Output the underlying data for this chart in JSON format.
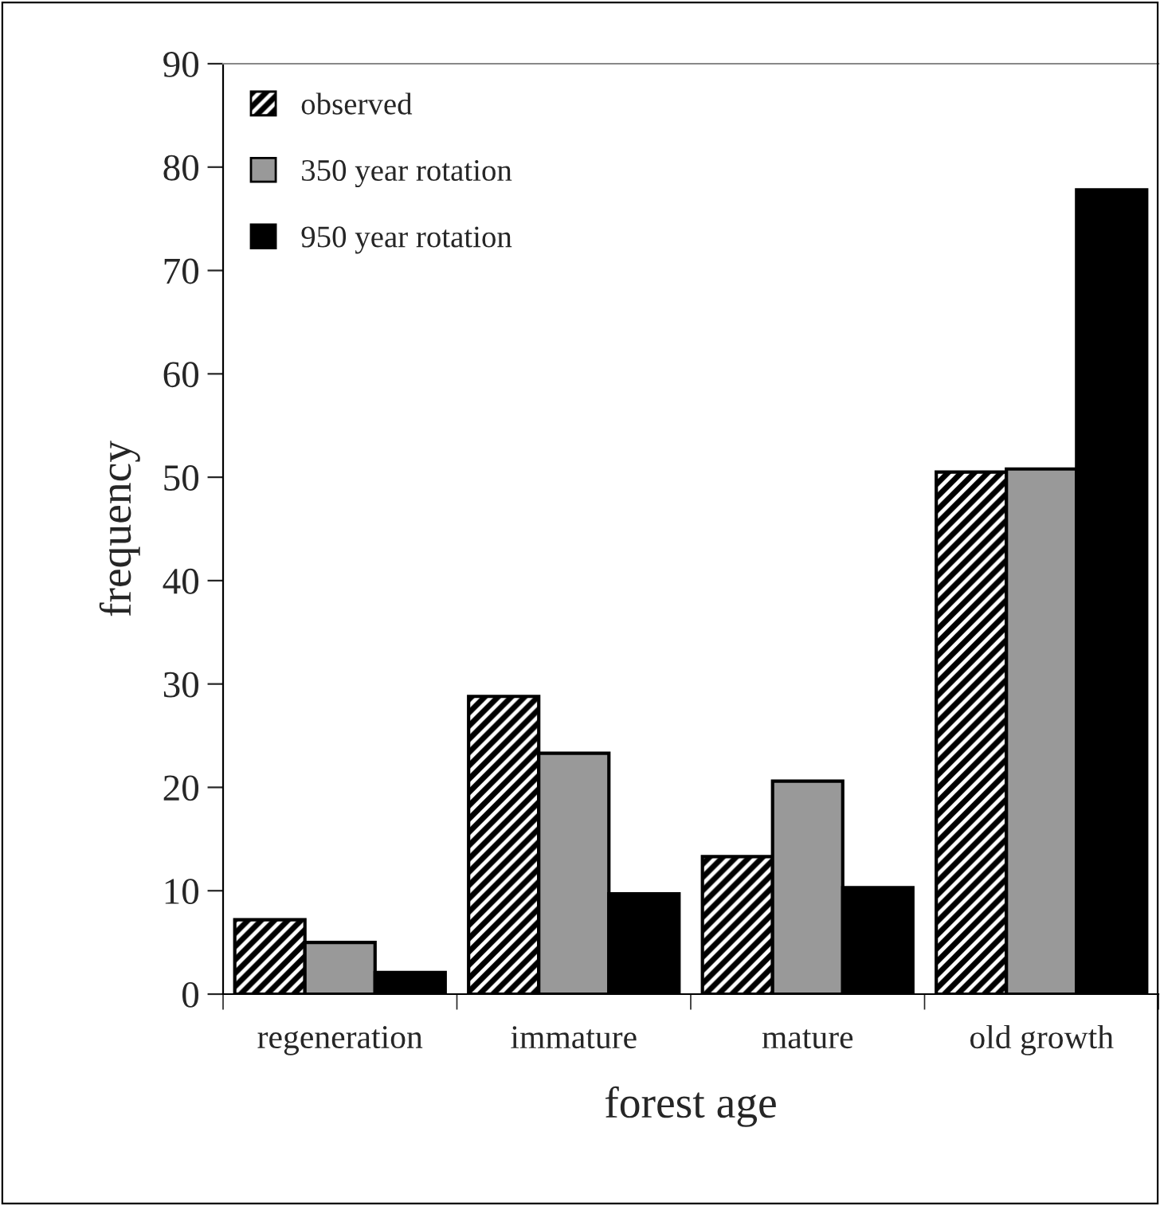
{
  "chart_data": {
    "type": "bar",
    "xlabel": "forest age",
    "ylabel": "frequency",
    "categories": [
      "regeneration",
      "immature",
      "mature",
      "old growth"
    ],
    "series": [
      {
        "name": "observed",
        "color": "#000000",
        "values": [
          7.2,
          28.8,
          13.3,
          50.5
        ]
      },
      {
        "name": "350 year rotation",
        "color": "#999999",
        "values": [
          5.0,
          23.3,
          20.6,
          50.8
        ]
      },
      {
        "name": "950 year rotation",
        "color": "#000000",
        "values": [
          2.1,
          9.7,
          10.3,
          77.8
        ]
      }
    ],
    "ylim": [
      0,
      90
    ],
    "yticks": [
      0,
      10,
      20,
      30,
      40,
      50,
      60,
      70,
      80,
      90
    ],
    "grid": false,
    "legend": "top left"
  }
}
